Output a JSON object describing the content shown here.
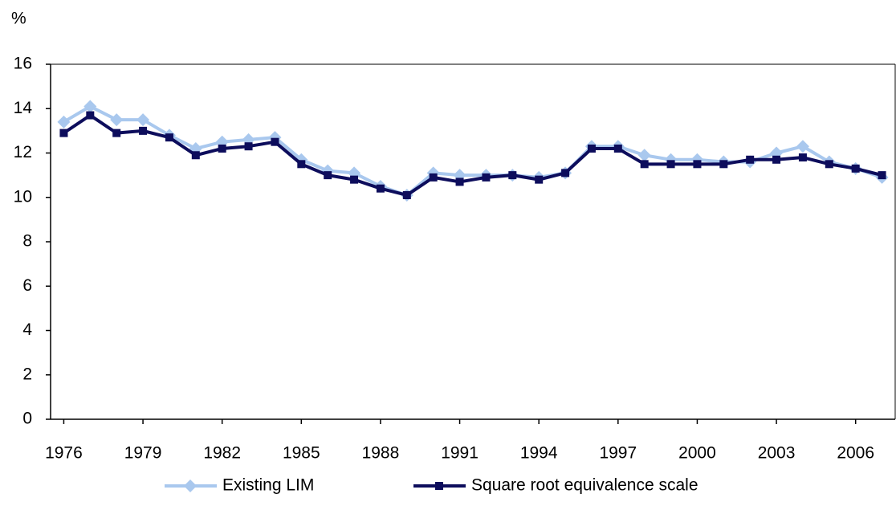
{
  "chart_data": {
    "type": "line",
    "y_unit": "%",
    "x": [
      1976,
      1977,
      1978,
      1979,
      1980,
      1981,
      1982,
      1983,
      1984,
      1985,
      1986,
      1987,
      1988,
      1989,
      1990,
      1991,
      1992,
      1993,
      1994,
      1995,
      1996,
      1997,
      1998,
      1999,
      2000,
      2001,
      2002,
      2003,
      2004,
      2005,
      2006,
      2007
    ],
    "xlim": [
      1975.5,
      2007.5
    ],
    "xticks": [
      1976,
      1979,
      1982,
      1985,
      1988,
      1991,
      1994,
      1997,
      2000,
      2003,
      2006
    ],
    "ylim": [
      0,
      16
    ],
    "yticks": [
      0,
      2,
      4,
      6,
      8,
      10,
      12,
      14,
      16
    ],
    "grid": false,
    "series": [
      {
        "name": "Existing LIM",
        "color": "#a9c8ee",
        "marker": "diamond",
        "values": [
          13.4,
          14.1,
          13.5,
          13.5,
          12.8,
          12.2,
          12.5,
          12.6,
          12.7,
          11.7,
          11.2,
          11.1,
          10.5,
          10.1,
          11.1,
          11.0,
          11.0,
          11.0,
          10.9,
          11.1,
          12.3,
          12.3,
          11.9,
          11.7,
          11.7,
          11.6,
          11.6,
          12.0,
          12.3,
          11.6,
          11.3,
          10.9
        ]
      },
      {
        "name": "Square root equivalence scale",
        "color": "#0d0d5c",
        "marker": "square",
        "values": [
          12.9,
          13.7,
          12.9,
          13.0,
          12.7,
          11.9,
          12.2,
          12.3,
          12.5,
          11.5,
          11.0,
          10.8,
          10.4,
          10.1,
          10.9,
          10.7,
          10.9,
          11.0,
          10.8,
          11.1,
          12.2,
          12.2,
          11.5,
          11.5,
          11.5,
          11.5,
          11.7,
          11.7,
          11.8,
          11.5,
          11.3,
          11.0
        ]
      }
    ],
    "legend": "bottom"
  }
}
